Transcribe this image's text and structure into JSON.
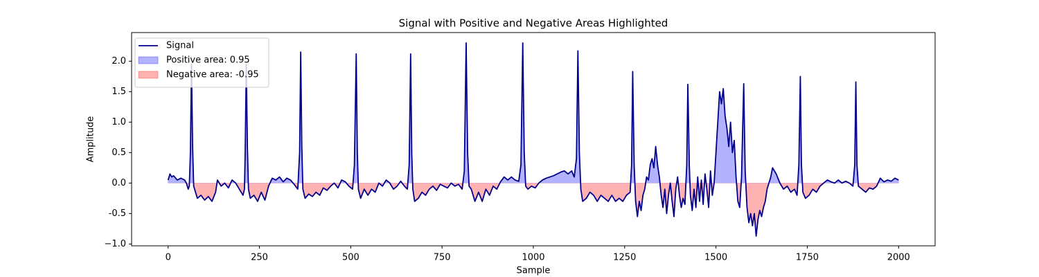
{
  "chart_data": {
    "type": "line",
    "title": "Signal with Positive and Negative Areas Highlighted",
    "xlabel": "Sample",
    "ylabel": "Amplitude",
    "xlim": [
      -100,
      2100
    ],
    "ylim": [
      -1.03,
      2.47
    ],
    "xticks": [
      0,
      250,
      500,
      750,
      1000,
      1250,
      1500,
      1750,
      2000
    ],
    "yticks": [
      {
        "value": -1,
        "label": "−1.0"
      },
      -0.5,
      {
        "value": 0,
        "label": "0.0"
      },
      0.5,
      {
        "value": 1,
        "label": "1.0"
      },
      1.5,
      {
        "value": 2,
        "label": "2.0"
      }
    ],
    "legend": "upper left",
    "x": [
      0,
      5,
      10,
      15,
      25,
      35,
      45,
      50,
      55,
      58,
      61,
      64,
      67,
      70,
      75,
      80,
      90,
      100,
      110,
      120,
      130,
      135,
      145,
      155,
      165,
      175,
      185,
      195,
      205,
      209,
      211,
      214,
      217,
      220,
      225,
      235,
      245,
      255,
      265,
      275,
      285,
      295,
      305,
      315,
      325,
      335,
      345,
      355,
      360,
      363,
      366,
      369,
      375,
      385,
      395,
      405,
      415,
      425,
      435,
      445,
      455,
      465,
      475,
      485,
      495,
      505,
      510,
      515,
      518,
      521,
      527,
      537,
      547,
      557,
      567,
      577,
      587,
      597,
      607,
      617,
      627,
      637,
      647,
      655,
      660,
      664,
      667,
      670,
      675,
      685,
      695,
      705,
      715,
      725,
      735,
      745,
      755,
      765,
      775,
      785,
      795,
      805,
      811,
      816,
      820,
      824,
      830,
      840,
      850,
      860,
      870,
      880,
      890,
      900,
      910,
      920,
      930,
      940,
      950,
      960,
      966,
      971,
      975,
      979,
      985,
      995,
      1005,
      1015,
      1025,
      1035,
      1045,
      1055,
      1065,
      1075,
      1085,
      1095,
      1105,
      1112,
      1118,
      1122,
      1126,
      1130,
      1135,
      1145,
      1155,
      1165,
      1175,
      1185,
      1195,
      1205,
      1215,
      1225,
      1235,
      1245,
      1255,
      1265,
      1269,
      1272,
      1276,
      1280,
      1285,
      1290,
      1295,
      1300,
      1305,
      1310,
      1315,
      1320,
      1325,
      1330,
      1335,
      1340,
      1345,
      1350,
      1355,
      1360,
      1365,
      1370,
      1375,
      1380,
      1385,
      1390,
      1395,
      1400,
      1405,
      1410,
      1415,
      1420,
      1423,
      1427,
      1430,
      1435,
      1440,
      1445,
      1450,
      1455,
      1460,
      1465,
      1470,
      1475,
      1480,
      1485,
      1490,
      1495,
      1500,
      1505,
      1510,
      1515,
      1520,
      1525,
      1530,
      1535,
      1540,
      1545,
      1550,
      1555,
      1560,
      1565,
      1570,
      1576,
      1580,
      1585,
      1590,
      1595,
      1600,
      1605,
      1610,
      1615,
      1620,
      1625,
      1630,
      1635,
      1640,
      1650,
      1655,
      1660,
      1665,
      1675,
      1685,
      1695,
      1705,
      1715,
      1722,
      1727,
      1731,
      1734,
      1738,
      1745,
      1755,
      1765,
      1775,
      1785,
      1795,
      1805,
      1815,
      1825,
      1835,
      1845,
      1855,
      1865,
      1875,
      1880,
      1883,
      1886,
      1890,
      1900,
      1910,
      1920,
      1930,
      1940,
      1950,
      1960,
      1970,
      1980,
      1990,
      2000
    ],
    "series": [
      {
        "name": "Signal",
        "color": "#00008b",
        "values": [
          0.05,
          0.15,
          0.1,
          0.12,
          0.05,
          0.08,
          0.05,
          0.0,
          -0.1,
          -0.05,
          0.5,
          1.95,
          0.6,
          -0.05,
          -0.15,
          -0.25,
          -0.2,
          -0.28,
          -0.22,
          -0.3,
          -0.15,
          0.05,
          -0.05,
          0.0,
          -0.08,
          0.05,
          0.0,
          -0.1,
          -0.2,
          -0.1,
          0.5,
          1.95,
          0.6,
          -0.1,
          -0.25,
          -0.2,
          -0.3,
          -0.15,
          -0.28,
          -0.05,
          0.08,
          0.05,
          0.1,
          0.02,
          0.08,
          0.05,
          -0.02,
          -0.1,
          0.5,
          2.15,
          0.6,
          -0.1,
          -0.25,
          -0.18,
          -0.22,
          -0.15,
          -0.2,
          -0.08,
          -0.12,
          -0.05,
          0.0,
          -0.08,
          0.05,
          0.02,
          -0.05,
          -0.1,
          0.3,
          2.12,
          0.5,
          -0.1,
          -0.25,
          -0.1,
          -0.2,
          -0.1,
          -0.15,
          0.0,
          -0.05,
          0.05,
          0.0,
          -0.1,
          -0.05,
          0.03,
          -0.05,
          -0.1,
          0.3,
          2.12,
          0.5,
          -0.1,
          -0.3,
          -0.25,
          -0.15,
          -0.2,
          -0.1,
          -0.05,
          -0.12,
          -0.02,
          -0.05,
          -0.08,
          0.0,
          -0.05,
          -0.02,
          -0.1,
          0.2,
          2.3,
          0.5,
          -0.05,
          -0.1,
          -0.3,
          -0.15,
          -0.3,
          -0.1,
          -0.2,
          -0.05,
          -0.1,
          0.02,
          0.1,
          0.05,
          0.1,
          0.05,
          0.03,
          0.3,
          2.3,
          0.5,
          -0.05,
          -0.1,
          -0.05,
          -0.08,
          0.0,
          0.05,
          0.08,
          0.1,
          0.12,
          0.15,
          0.18,
          0.2,
          0.15,
          0.2,
          0.1,
          0.4,
          2.17,
          0.5,
          -0.1,
          -0.3,
          -0.25,
          -0.15,
          -0.2,
          -0.3,
          -0.2,
          -0.25,
          -0.3,
          -0.2,
          -0.3,
          -0.25,
          -0.3,
          -0.2,
          -0.15,
          0.3,
          1.83,
          0.3,
          -0.3,
          -0.55,
          -0.3,
          -0.45,
          -0.2,
          -0.1,
          0.1,
          0.05,
          0.3,
          0.4,
          0.25,
          0.6,
          0.3,
          0.1,
          -0.2,
          -0.4,
          -0.1,
          -0.5,
          -0.2,
          0.0,
          -0.3,
          -0.55,
          -0.1,
          0.1,
          -0.2,
          -0.4,
          -0.25,
          -0.35,
          0.3,
          1.62,
          0.3,
          -0.2,
          -0.45,
          -0.1,
          -0.4,
          0.1,
          -0.3,
          0.05,
          -0.35,
          0.15,
          -0.1,
          -0.4,
          0.2,
          -0.2,
          0.0,
          0.5,
          1.0,
          1.5,
          1.3,
          1.55,
          1.1,
          0.9,
          0.6,
          1.0,
          0.5,
          0.7,
          0.1,
          -0.3,
          -0.4,
          0.1,
          1.63,
          0.2,
          -0.4,
          -0.65,
          -0.5,
          -0.7,
          -0.5,
          -0.87,
          -0.6,
          -0.45,
          -0.55,
          -0.4,
          -0.3,
          -0.1,
          0.1,
          0.25,
          0.2,
          0.15,
          0.0,
          -0.1,
          -0.05,
          -0.15,
          -0.1,
          -0.2,
          0.3,
          1.75,
          0.3,
          -0.15,
          -0.25,
          -0.2,
          -0.1,
          -0.15,
          -0.05,
          0.0,
          0.05,
          0.02,
          0.0,
          0.05,
          0.0,
          0.03,
          0.0,
          -0.05,
          0.3,
          1.66,
          0.3,
          -0.05,
          -0.1,
          -0.15,
          -0.08,
          -0.1,
          -0.05,
          0.08,
          0.02,
          0.05,
          0.03,
          0.08,
          0.05
        ]
      }
    ],
    "fills": [
      {
        "name": "Positive area: 0.95",
        "color": "#0000ff",
        "alpha": 0.3,
        "side": "positive"
      },
      {
        "name": "Negative area: -0.95",
        "color": "#ff0000",
        "alpha": 0.3,
        "side": "negative"
      }
    ]
  }
}
